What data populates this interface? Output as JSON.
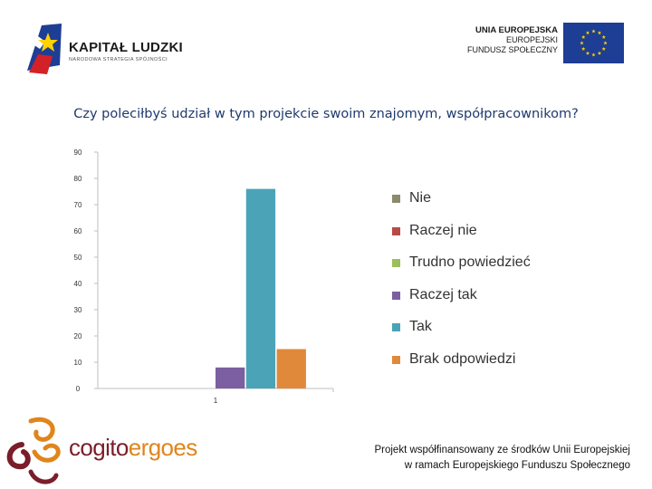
{
  "header": {
    "left_logo": {
      "title": "KAPITAŁ LUDZKI",
      "subtitle": "NARODOWA STRATEGIA SPÓJNOŚCI"
    },
    "right_logo": {
      "line1": "UNIA EUROPEJSKA",
      "line2": "EUROPEJSKI",
      "line3": "FUNDUSZ SPOŁECZNY"
    }
  },
  "footer": {
    "brand_part1": "cogito",
    "brand_part2": "ergo",
    "brand_part3": "es",
    "note_line1": "Projekt  współfinansowany ze środków Unii Europejskiej",
    "note_line2": "w ramach Europejskiego Funduszu Społecznego"
  },
  "colors": {
    "title": "#1f3a6e",
    "flag_blue": "#1d3e94",
    "flag_star": "#ffd200"
  },
  "chart_data": {
    "type": "bar",
    "title": "Czy poleciłbyś udział w tym projekcie swoim znajomym, współpracownikom?",
    "categories": [
      "1"
    ],
    "ylim": [
      0,
      90
    ],
    "yticks": [
      0,
      10,
      20,
      30,
      40,
      50,
      60,
      70,
      80,
      90
    ],
    "grid": false,
    "legend_position": "right",
    "series": [
      {
        "name": "Nie",
        "values": [
          0
        ],
        "color": "#8b8b6b"
      },
      {
        "name": "Raczej nie",
        "values": [
          0
        ],
        "color": "#b84a45"
      },
      {
        "name": "Trudno powiedzieć",
        "values": [
          0
        ],
        "color": "#9bbf5a"
      },
      {
        "name": "Raczej tak",
        "values": [
          8
        ],
        "color": "#7b5fa0"
      },
      {
        "name": "Tak",
        "values": [
          76
        ],
        "color": "#4ba3b8"
      },
      {
        "name": "Brak odpowiedzi",
        "values": [
          15
        ],
        "color": "#e0893a"
      }
    ]
  }
}
